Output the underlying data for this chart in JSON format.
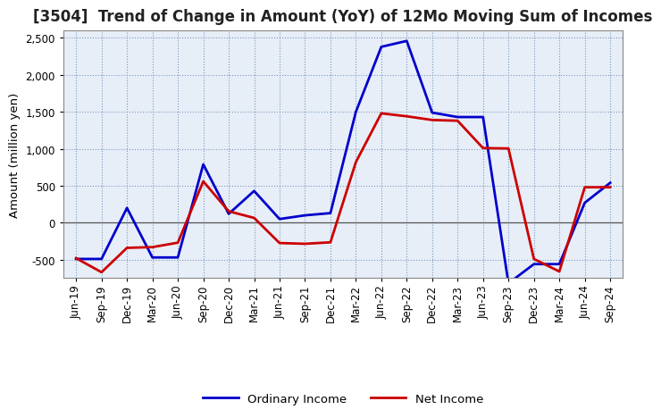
{
  "title": "[3504]  Trend of Change in Amount (YoY) of 12Mo Moving Sum of Incomes",
  "ylabel": "Amount (million yen)",
  "x_labels": [
    "Jun-19",
    "Sep-19",
    "Dec-19",
    "Mar-20",
    "Jun-20",
    "Sep-20",
    "Dec-20",
    "Mar-21",
    "Jun-21",
    "Sep-21",
    "Dec-21",
    "Mar-22",
    "Jun-22",
    "Sep-22",
    "Dec-22",
    "Mar-23",
    "Jun-23",
    "Sep-23",
    "Dec-23",
    "Mar-24",
    "Jun-24",
    "Sep-24"
  ],
  "ordinary_income": [
    -490,
    -490,
    200,
    -470,
    -470,
    790,
    120,
    430,
    50,
    100,
    130,
    1500,
    2380,
    2460,
    1490,
    1430,
    1430,
    -820,
    -560,
    -560,
    270,
    540
  ],
  "net_income": [
    -480,
    -670,
    -340,
    -330,
    -270,
    560,
    155,
    65,
    -275,
    -285,
    -265,
    820,
    1480,
    1440,
    1390,
    1380,
    1010,
    1005,
    -490,
    -660,
    480,
    480
  ],
  "ordinary_color": "#0000cc",
  "net_color": "#cc0000",
  "ylim": [
    -750,
    2600
  ],
  "yticks": [
    -500,
    0,
    500,
    1000,
    1500,
    2000,
    2500
  ],
  "plot_bg_color": "#e8eef8",
  "fig_bg_color": "#ffffff",
  "grid_color": "#7799bb",
  "title_fontsize": 12,
  "label_fontsize": 9.5,
  "tick_fontsize": 8.5,
  "linewidth": 2.0
}
